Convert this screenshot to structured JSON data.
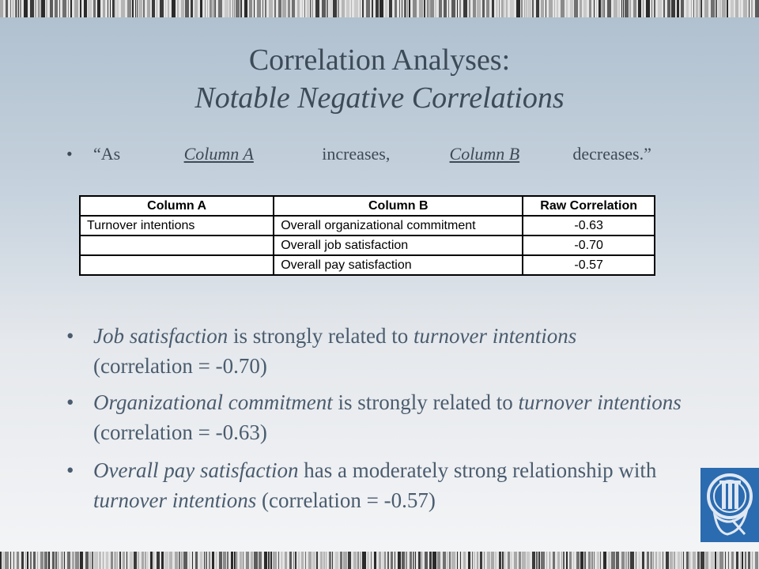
{
  "title": {
    "line1": "Correlation Analyses:",
    "line2": "Notable Negative Correlations"
  },
  "intro": {
    "open": "“As",
    "blank_a": "Column A",
    "mid": "increases,",
    "blank_b": "Column B",
    "close": "decreases.”"
  },
  "table": {
    "headers": [
      "Column A",
      "Column B",
      "Raw Correlation"
    ],
    "rows": [
      [
        "Turnover intentions",
        "Overall organizational commitment",
        "-0.63"
      ],
      [
        "",
        "Overall job satisfaction",
        "-0.70"
      ],
      [
        "",
        "Overall pay satisfaction",
        "-0.57"
      ]
    ]
  },
  "bullets": [
    {
      "em1": "Job satisfaction",
      "t1": " is strongly related to ",
      "em2": "turnover intentions",
      "t2": " (correlation = -0.70)"
    },
    {
      "em1": "Organizational commitment",
      "t1": " is strongly related to ",
      "em2": "turnover intentions",
      "t2": " (correlation = -0.63)"
    },
    {
      "em1": "Overall pay satisfaction",
      "t1": "  has a moderately strong relationship with ",
      "em2": "turnover intentions",
      "t2": " (correlation = -0.57)"
    }
  ],
  "bullet_symbol": "•",
  "colors": {
    "logo_bg": "#2b6bb0",
    "title": "#3d4a58",
    "body": "#4a5c6e"
  },
  "icons": {
    "logo": "university-seal-icon"
  }
}
